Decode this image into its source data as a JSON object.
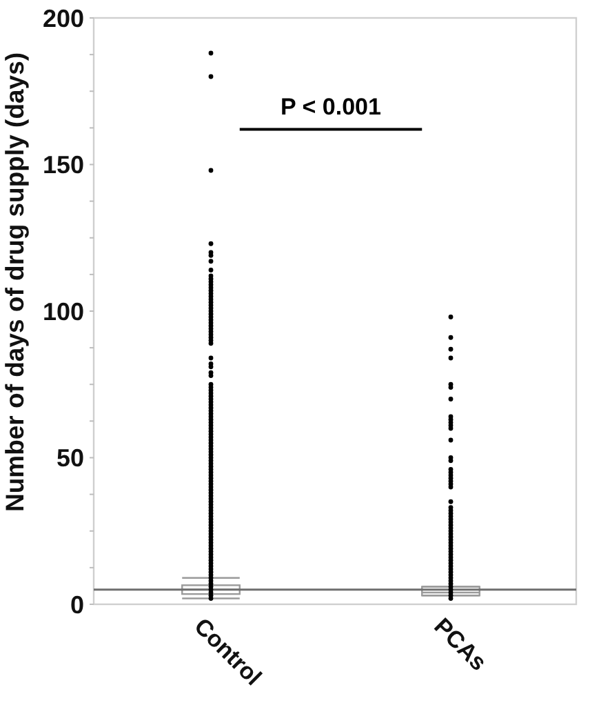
{
  "chart_data": {
    "type": "box",
    "ylabel": "Number of days of drug supply (days)",
    "categories": [
      "Control",
      "PCAs"
    ],
    "series": [
      {
        "type": "box",
        "color": "#9a9a9a",
        "boxes": [
          {
            "low": 2,
            "q1": 3.5,
            "median": 5,
            "q3": 6.5,
            "high": 9
          },
          {
            "low": 3,
            "q1": 3,
            "median": 4,
            "q3": 6,
            "high": 6
          }
        ]
      },
      {
        "type": "scatter",
        "color": "#000000",
        "x": [
          "Control",
          "Control",
          "Control",
          "Control",
          "Control",
          "Control",
          "Control",
          "Control",
          "Control",
          "Control",
          "Control",
          "Control",
          "Control",
          "Control",
          "Control",
          "Control",
          "Control",
          "Control",
          "Control",
          "Control",
          "Control",
          "Control",
          "Control",
          "Control",
          "Control",
          "Control",
          "Control",
          "Control",
          "Control",
          "Control",
          "Control",
          "Control",
          "Control",
          "Control",
          "Control",
          "Control",
          "Control",
          "Control",
          "Control",
          "Control",
          "Control",
          "Control",
          "Control",
          "Control",
          "Control",
          "Control",
          "Control",
          "Control",
          "Control",
          "Control",
          "Control",
          "Control",
          "Control",
          "Control",
          "Control",
          "Control",
          "Control",
          "Control",
          "Control",
          "Control",
          "Control",
          "Control",
          "Control",
          "Control",
          "Control",
          "Control",
          "Control",
          "Control",
          "Control",
          "Control",
          "Control",
          "Control",
          "Control",
          "Control",
          "Control",
          "Control",
          "Control",
          "Control",
          "Control",
          "Control",
          "Control",
          "Control",
          "Control",
          "Control",
          "Control",
          "Control",
          "Control",
          "Control",
          "Control",
          "Control",
          "Control",
          "Control",
          "Control",
          "Control",
          "Control",
          "Control",
          "Control",
          "Control",
          "Control",
          "Control",
          "Control",
          "Control",
          "Control",
          "Control",
          "Control",
          "Control",
          "Control",
          "Control",
          "Control",
          "Control",
          "Control",
          "PCAs",
          "PCAs",
          "PCAs",
          "PCAs",
          "PCAs",
          "PCAs",
          "PCAs",
          "PCAs",
          "PCAs",
          "PCAs",
          "PCAs",
          "PCAs",
          "PCAs",
          "PCAs",
          "PCAs",
          "PCAs",
          "PCAs",
          "PCAs",
          "PCAs",
          "PCAs",
          "PCAs",
          "PCAs",
          "PCAs",
          "PCAs",
          "PCAs",
          "PCAs",
          "PCAs",
          "PCAs",
          "PCAs",
          "PCAs",
          "PCAs",
          "PCAs",
          "PCAs",
          "PCAs",
          "PCAs",
          "PCAs",
          "PCAs",
          "PCAs",
          "PCAs",
          "PCAs",
          "PCAs",
          "PCAs",
          "PCAs",
          "PCAs",
          "PCAs",
          "PCAs",
          "PCAs",
          "PCAs",
          "PCAs",
          "PCAs",
          "PCAs",
          "PCAs",
          "PCAs",
          "PCAs",
          "PCAs"
        ],
        "values": [
          188,
          180,
          148,
          123,
          120,
          119,
          117,
          114,
          112,
          111,
          110,
          109,
          108,
          107,
          106,
          105,
          104,
          103,
          102,
          101,
          100,
          99,
          98,
          97,
          96,
          95,
          94,
          93,
          92,
          91,
          90,
          89,
          84,
          82,
          81,
          79,
          78,
          75,
          74,
          73,
          72,
          71,
          70,
          69,
          68,
          67,
          66,
          65,
          64,
          63,
          62,
          61,
          60,
          59,
          58,
          57,
          56,
          55,
          54,
          53,
          52,
          51,
          50,
          49,
          48,
          47,
          46,
          45,
          44,
          43,
          42,
          41,
          40,
          39,
          38,
          37,
          36,
          35,
          34,
          33,
          32,
          31,
          30,
          29,
          28,
          27,
          26,
          25,
          24,
          23,
          22,
          21,
          20,
          19,
          18,
          17,
          16,
          15,
          14,
          13,
          12,
          11,
          10,
          9,
          8,
          7,
          6,
          5,
          4,
          3,
          2,
          98,
          91,
          87,
          84,
          75,
          74,
          70,
          64,
          63,
          62,
          61,
          60,
          56,
          50,
          49,
          46,
          45,
          44,
          43,
          42,
          41,
          40,
          35,
          33,
          32,
          31,
          30,
          29,
          28,
          27,
          26,
          25,
          24,
          23,
          22,
          21,
          20,
          19,
          18,
          17,
          16,
          15,
          14,
          13,
          12,
          11,
          10,
          9,
          8,
          7,
          6,
          5,
          4,
          3,
          2
        ]
      }
    ],
    "marker": "circle",
    "ylim": [
      0,
      200
    ],
    "yticks": [
      0,
      {
        "value": 12.5,
        "label": null
      },
      {
        "value": 25,
        "label": null
      },
      {
        "value": 37.5,
        "label": null
      },
      50,
      {
        "value": 62.5,
        "label": null
      },
      {
        "value": 75,
        "label": null
      },
      {
        "value": 87.5,
        "label": null
      },
      100,
      {
        "value": 112.5,
        "label": null
      },
      {
        "value": 125,
        "label": null
      },
      {
        "value": 137.5,
        "label": null
      },
      150,
      {
        "value": 162.5,
        "label": null
      },
      {
        "value": 175,
        "label": null
      },
      {
        "value": 187.5,
        "label": null
      },
      200
    ],
    "ref_lines": [
      {
        "axis": "y",
        "value": 5,
        "color": "#6e6e6e"
      }
    ],
    "annotations": [
      "P < 0.001"
    ]
  }
}
